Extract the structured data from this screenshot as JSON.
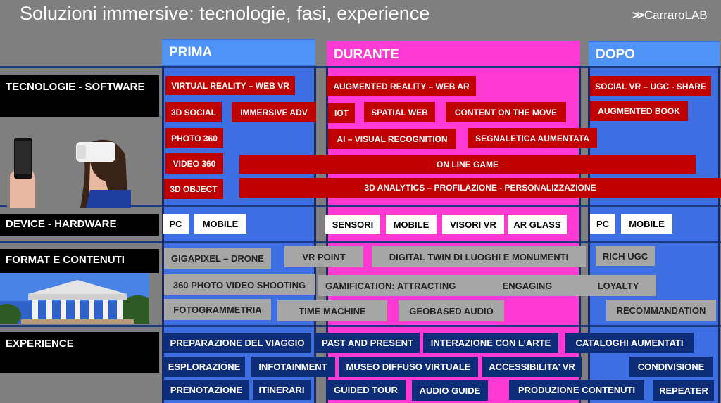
{
  "title": "Soluzioni immersive: tecnologie, fasi, experience",
  "logo": "CarraroLAB",
  "columns": {
    "prima": "PRIMA",
    "durante": "DURANTE",
    "dopo": "DOPO"
  },
  "rows": {
    "tecnologie": "TECNOLOGIE - SOFTWARE",
    "device": "DEVICE - HARDWARE",
    "format": "FORMAT E CONTENUTI",
    "experience": "EXPERIENCE"
  },
  "tecnologie": {
    "prima": [
      "VIRTUAL REALITY – WEB VR",
      "3D SOCIAL",
      "IMMERSIVE ADV",
      "PHOTO 360",
      "VIDEO 360",
      "3D OBJECT"
    ],
    "durante": [
      "AUGMENTED REALITY – WEB AR",
      "IOT",
      "SPATIAL WEB",
      "CONTENT ON THE MOVE",
      "AI – VISUAL RECOGNITION",
      "SEGNALETICA AUMENTATA"
    ],
    "dopo": [
      "SOCIAL VR – UGC - SHARE",
      "AUGMENTED BOOK"
    ],
    "cross": [
      "ON LINE GAME",
      "3D ANALYTICS – PROFILAZIONE - PERSONALIZZAZIONE"
    ]
  },
  "device": {
    "prima": [
      "PC",
      "MOBILE"
    ],
    "durante": [
      "SENSORI",
      "MOBILE",
      "VISORI VR",
      "AR GLASS"
    ],
    "dopo": [
      "PC",
      "MOBILE"
    ]
  },
  "format": {
    "items": [
      "GIGAPIXEL – DRONE",
      "VR POINT",
      "DIGITAL TWIN DI LUOGHI E MONUMENTI",
      "RICH UGC",
      "360 PHOTO VIDEO SHOOTING",
      "GAMIFICATION:  ATTRACTING",
      "ENGAGING",
      "LOYALTY",
      "FOTOGRAMMETRIA",
      "TIME MACHINE",
      "GEOBASED AUDIO",
      "RECOMMANDATION"
    ]
  },
  "experience": {
    "items": [
      "PREPARAZIONE DEL VIAGGIO",
      "PAST AND PRESENT",
      "INTERAZIONE CON L’ARTE",
      "CATALOGHI AUMENTATI",
      "ESPLORAZIONE",
      "INFOTAINMENT",
      "MUSEO DIFFUSO VIRTUALE",
      "ACCESSIBILITA’ VR",
      "CONDIVISIONE",
      "PRENOTAZIONE",
      "ITINERARI",
      "GUIDED TOUR",
      "AUDIO GUIDE",
      "PRODUZIONE CONTENUTI",
      "REPEATER"
    ]
  }
}
